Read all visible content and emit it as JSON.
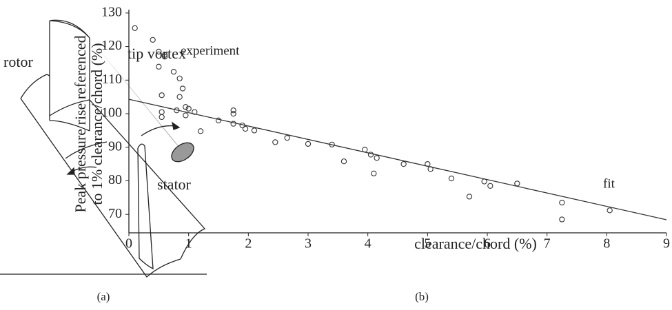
{
  "diagram": {
    "labels": [
      "rotor",
      "tip vortex",
      "stator"
    ],
    "caption": "(a)"
  },
  "chart_data": {
    "type": "scatter",
    "caption": "(b)",
    "xlabel": "clearance/chord (%)",
    "ylabel": [
      "Peak pressure rise referenced",
      "to 1% clearance/chord (%)"
    ],
    "xlim": [
      0,
      9
    ],
    "ylim": [
      64.5,
      131
    ],
    "xticks": [
      0,
      1,
      2,
      3,
      4,
      5,
      6,
      7,
      8,
      9
    ],
    "yticks": [
      70,
      80,
      90,
      100,
      110,
      120,
      130
    ],
    "series": [
      {
        "name": "experiment",
        "color": "#333333",
        "x": [
          0.1,
          0.4,
          0.5,
          0.6,
          0.6,
          0.5,
          0.75,
          0.85,
          0.9,
          0.55,
          0.85,
          0.95,
          1.0,
          0.8,
          1.1,
          0.55,
          0.55,
          0.95,
          1.75,
          1.75,
          1.5,
          1.75,
          1.9,
          1.95,
          2.1,
          1.2,
          2.65,
          2.45,
          3.0,
          3.4,
          3.95,
          4.05,
          4.15,
          3.6,
          4.6,
          5.0,
          5.05,
          4.1,
          5.4,
          5.95,
          6.05,
          6.5,
          5.7,
          7.25,
          8.05,
          7.25
        ],
        "values": [
          125.5,
          122,
          118.5,
          117.5,
          117,
          114,
          112.5,
          110.5,
          107.5,
          105.5,
          105,
          102,
          101.5,
          101,
          100.5,
          100.5,
          99,
          99.5,
          101,
          100,
          98,
          97,
          96.5,
          95.5,
          95,
          94.8,
          92.8,
          91.5,
          91,
          90.8,
          89.3,
          87.8,
          86.8,
          85.8,
          85,
          85,
          83.5,
          82.2,
          80.7,
          79.8,
          78.5,
          79.2,
          75.3,
          73.5,
          71.2,
          68.5
        ]
      },
      {
        "name": "fit",
        "color": "#333333",
        "x": [
          0,
          9
        ],
        "values": [
          104.3,
          68.4
        ]
      }
    ]
  }
}
